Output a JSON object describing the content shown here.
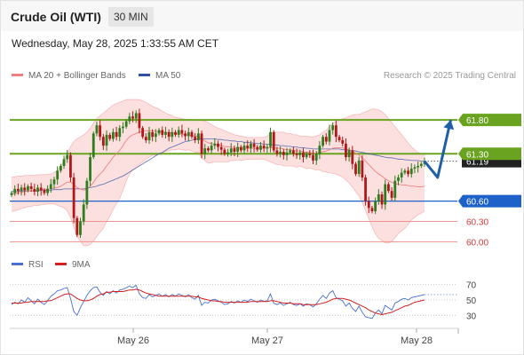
{
  "header": {
    "title": "Crude Oil (WTI)",
    "timeframe": "30 MIN",
    "datetime": "Wednesday, May 28, 2025 1:33:55 AM CET"
  },
  "legend": {
    "ma20": "MA 20 + Bollinger Bands",
    "ma50": "MA 50",
    "rsi": "RSI",
    "ma9": "9MA"
  },
  "credit": "Research © 2025 Trading Central",
  "colors": {
    "support_resistance": "#6aa31f",
    "pivot": "#1e62c9",
    "target": "#f09090",
    "ma20": "#f08080",
    "ma50": "#2f4fa0",
    "bands": "#fbd6d6",
    "candle_up": "#2e7d1f",
    "candle_down": "#b01818",
    "arrow": "#1f5fa8",
    "rsi_line": "#4a6fd0",
    "rsi_ma": "#d42020",
    "last_price_bg": "#222222"
  },
  "chart_data": [
    {
      "type": "candlestick",
      "ylim": [
        59.9,
        62.3
      ],
      "x_labels": [
        "May 26",
        "May 27",
        "May 28"
      ],
      "levels": [
        {
          "value": 61.8,
          "label": "61.80",
          "kind": "resistance"
        },
        {
          "value": 61.3,
          "label": "61.30",
          "kind": "resistance"
        },
        {
          "value": 60.6,
          "label": "60.60",
          "kind": "pivot"
        },
        {
          "value": 60.3,
          "label": "60.30",
          "kind": "target"
        },
        {
          "value": 60.0,
          "label": "60.00",
          "kind": "target"
        }
      ],
      "last_price": {
        "value": 61.19,
        "label": "61.19"
      },
      "closes": [
        60.72,
        60.78,
        60.75,
        60.8,
        60.76,
        60.82,
        60.78,
        60.74,
        60.8,
        60.76,
        60.72,
        60.78,
        60.85,
        60.92,
        61.05,
        61.12,
        61.22,
        61.28,
        60.95,
        60.35,
        60.1,
        60.3,
        60.55,
        60.9,
        61.25,
        61.6,
        61.72,
        61.55,
        61.42,
        61.58,
        61.52,
        61.62,
        61.55,
        61.68,
        61.7,
        61.78,
        61.85,
        61.82,
        61.9,
        61.68,
        61.55,
        61.5,
        61.62,
        61.55,
        61.6,
        61.65,
        61.58,
        61.62,
        61.55,
        61.62,
        61.58,
        61.65,
        61.6,
        61.56,
        61.62,
        61.55,
        61.5,
        61.6,
        61.3,
        61.38,
        61.35,
        61.42,
        61.45,
        61.4,
        61.36,
        61.3,
        61.32,
        61.38,
        61.33,
        61.4,
        61.35,
        61.42,
        61.38,
        61.45,
        61.4,
        61.36,
        61.42,
        61.38,
        61.4,
        61.62,
        61.35,
        61.3,
        61.33,
        61.28,
        61.32,
        61.35,
        61.3,
        61.28,
        61.32,
        61.25,
        61.3,
        61.28,
        61.2,
        61.3,
        61.42,
        61.55,
        61.48,
        61.65,
        61.72,
        61.55,
        61.5,
        61.45,
        61.25,
        61.35,
        61.15,
        61.0,
        61.2,
        60.95,
        60.6,
        60.5,
        60.45,
        60.6,
        60.7,
        60.55,
        60.85,
        60.75,
        60.65,
        60.9,
        60.95,
        61.02,
        61.05,
        61.0,
        61.08,
        61.1,
        61.12,
        61.15,
        61.19
      ],
      "ma20": [
        60.7,
        60.71,
        60.72,
        60.73,
        60.74,
        60.75,
        60.75,
        60.76,
        60.76,
        60.77,
        60.77,
        60.78,
        60.78,
        60.79,
        60.8,
        60.82,
        60.85,
        60.88,
        60.88,
        60.85,
        60.8,
        60.78,
        60.76,
        60.78,
        60.82,
        60.88,
        60.95,
        61.0,
        61.05,
        61.12,
        61.18,
        61.25,
        61.3,
        61.35,
        61.42,
        61.5,
        61.55,
        61.58,
        61.6,
        61.62,
        61.63,
        61.64,
        61.64,
        61.64,
        61.63,
        61.63,
        61.62,
        61.62,
        61.61,
        61.61,
        61.6,
        61.6,
        61.59,
        61.58,
        61.58,
        61.57,
        61.56,
        61.56,
        61.52,
        61.49,
        61.46,
        61.45,
        61.44,
        61.43,
        61.42,
        61.41,
        61.4,
        61.4,
        61.39,
        61.39,
        61.38,
        61.38,
        61.38,
        61.38,
        61.38,
        61.38,
        61.38,
        61.38,
        61.38,
        61.39,
        61.39,
        61.38,
        61.38,
        61.37,
        61.36,
        61.36,
        61.35,
        61.34,
        61.34,
        61.33,
        61.32,
        61.32,
        61.31,
        61.31,
        61.32,
        61.33,
        61.34,
        61.36,
        61.38,
        61.39,
        61.39,
        61.39,
        61.37,
        61.36,
        61.34,
        61.31,
        61.28,
        61.24,
        61.19,
        61.14,
        61.09,
        61.04,
        61.0,
        60.97,
        60.93,
        60.9,
        60.88,
        60.86,
        60.85,
        60.84,
        60.84,
        60.83,
        60.82,
        60.82,
        60.81,
        60.81,
        60.82
      ],
      "ma50": [
        60.74,
        60.74,
        60.74,
        60.75,
        60.75,
        60.75,
        60.75,
        60.75,
        60.75,
        60.76,
        60.76,
        60.76,
        60.76,
        60.77,
        60.77,
        60.77,
        60.78,
        60.78,
        60.78,
        60.78,
        60.78,
        60.78,
        60.78,
        60.79,
        60.8,
        60.81,
        60.82,
        60.84,
        60.85,
        60.87,
        60.89,
        60.91,
        60.93,
        60.95,
        60.97,
        61.0,
        61.03,
        61.06,
        61.09,
        61.12,
        61.15,
        61.18,
        61.21,
        61.24,
        61.27,
        61.3,
        61.32,
        61.35,
        61.38,
        61.4,
        61.42,
        61.44,
        61.46,
        61.48,
        61.49,
        61.5,
        61.51,
        61.52,
        61.52,
        61.52,
        61.52,
        61.52,
        61.52,
        61.51,
        61.51,
        61.5,
        61.5,
        61.49,
        61.49,
        61.48,
        61.48,
        61.47,
        61.47,
        61.46,
        61.46,
        61.45,
        61.45,
        61.44,
        61.44,
        61.44,
        61.43,
        61.43,
        61.42,
        61.42,
        61.41,
        61.41,
        61.4,
        61.4,
        61.39,
        61.39,
        61.38,
        61.38,
        61.37,
        61.37,
        61.37,
        61.37,
        61.37,
        61.37,
        61.37,
        61.37,
        61.37,
        61.36,
        61.36,
        61.35,
        61.35,
        61.34,
        61.33,
        61.32,
        61.31,
        61.3,
        61.29,
        61.28,
        61.27,
        61.26,
        61.25,
        61.24,
        61.24,
        61.23,
        61.22,
        61.22,
        61.21,
        61.21,
        61.2,
        61.2,
        61.2,
        61.19,
        61.19
      ],
      "bb_upper": [
        60.95,
        60.96,
        60.97,
        60.97,
        60.98,
        60.98,
        60.98,
        60.98,
        60.99,
        60.99,
        60.99,
        61.0,
        61.0,
        61.02,
        61.06,
        61.12,
        61.2,
        61.3,
        61.4,
        61.48,
        61.52,
        61.55,
        61.58,
        61.62,
        61.68,
        61.75,
        61.82,
        61.86,
        61.9,
        61.94,
        61.98,
        62.02,
        62.04,
        62.06,
        62.08,
        62.1,
        62.1,
        62.1,
        62.1,
        62.1,
        62.08,
        62.06,
        62.03,
        62.0,
        61.98,
        61.96,
        61.93,
        61.9,
        61.88,
        61.86,
        61.84,
        61.83,
        61.82,
        61.81,
        61.8,
        61.8,
        61.8,
        61.8,
        61.8,
        61.78,
        61.76,
        61.73,
        61.7,
        61.68,
        61.66,
        61.64,
        61.62,
        61.6,
        61.58,
        61.57,
        61.56,
        61.55,
        61.54,
        61.54,
        61.54,
        61.54,
        61.54,
        61.54,
        61.56,
        61.6,
        61.62,
        61.62,
        61.62,
        61.62,
        61.6,
        61.6,
        61.58,
        61.58,
        61.56,
        61.56,
        61.56,
        61.55,
        61.55,
        61.56,
        61.58,
        61.62,
        61.65,
        61.7,
        61.75,
        61.78,
        61.8,
        61.82,
        61.83,
        61.85,
        61.87,
        61.88,
        61.88,
        61.9,
        61.92,
        61.94,
        61.96,
        61.96,
        61.95,
        61.92,
        61.88,
        61.82,
        61.76,
        61.7,
        61.64,
        61.58,
        61.52,
        61.46,
        61.4,
        61.36,
        61.32,
        61.3,
        61.28
      ],
      "bb_lower": [
        60.45,
        60.46,
        60.47,
        60.49,
        60.5,
        60.52,
        60.52,
        60.54,
        60.53,
        60.55,
        60.55,
        60.56,
        60.56,
        60.56,
        60.54,
        60.52,
        60.5,
        60.46,
        60.36,
        60.22,
        60.08,
        60.01,
        59.94,
        59.94,
        59.96,
        60.01,
        60.08,
        60.14,
        60.2,
        60.3,
        60.38,
        60.48,
        60.56,
        60.64,
        60.76,
        60.9,
        61.0,
        61.06,
        61.1,
        61.14,
        61.18,
        61.22,
        61.25,
        61.28,
        61.28,
        61.3,
        61.31,
        61.34,
        61.34,
        61.36,
        61.36,
        61.37,
        61.36,
        61.35,
        61.36,
        61.34,
        61.32,
        61.32,
        61.24,
        61.2,
        61.16,
        61.17,
        61.18,
        61.18,
        61.18,
        61.18,
        61.18,
        61.2,
        61.2,
        61.21,
        61.2,
        61.21,
        61.22,
        61.22,
        61.22,
        61.22,
        61.22,
        61.22,
        61.2,
        61.18,
        61.16,
        61.14,
        61.14,
        61.12,
        61.12,
        61.12,
        61.12,
        61.1,
        61.12,
        61.1,
        61.08,
        61.09,
        61.07,
        61.06,
        61.06,
        61.04,
        61.03,
        61.02,
        61.01,
        61.0,
        60.98,
        60.96,
        60.91,
        60.87,
        60.81,
        60.74,
        60.68,
        60.58,
        60.46,
        60.34,
        60.22,
        60.12,
        60.05,
        60.02,
        59.98,
        59.98,
        60.0,
        60.06,
        60.12,
        60.16,
        60.2,
        60.26,
        60.32,
        60.36,
        60.4,
        60.42,
        60.46
      ],
      "projection": [
        {
          "step": 0,
          "value": 61.19
        },
        {
          "step": 4,
          "value": 60.95
        },
        {
          "step": 8,
          "value": 61.8
        }
      ]
    },
    {
      "type": "line",
      "name": "RSI",
      "ylim": [
        20,
        80
      ],
      "y_ticks": [
        70,
        50,
        30
      ],
      "rsi": [
        44,
        47,
        45,
        50,
        47,
        53,
        49,
        45,
        51,
        47,
        44,
        49,
        55,
        58,
        62,
        63,
        65,
        66,
        52,
        35,
        30,
        40,
        48,
        56,
        62,
        66,
        67,
        60,
        56,
        61,
        58,
        62,
        59,
        63,
        64,
        66,
        68,
        66,
        69,
        58,
        53,
        52,
        57,
        54,
        56,
        58,
        55,
        57,
        54,
        57,
        55,
        58,
        56,
        54,
        57,
        53,
        51,
        56,
        43,
        47,
        46,
        50,
        51,
        49,
        47,
        44,
        45,
        48,
        46,
        49,
        47,
        50,
        48,
        51,
        49,
        47,
        50,
        48,
        49,
        58,
        46,
        44,
        46,
        43,
        45,
        47,
        44,
        43,
        45,
        42,
        45,
        44,
        41,
        45,
        51,
        56,
        52,
        59,
        62,
        53,
        51,
        49,
        42,
        46,
        39,
        35,
        42,
        34,
        28,
        27,
        26,
        33,
        37,
        32,
        43,
        40,
        37,
        46,
        48,
        51,
        52,
        50,
        53,
        54,
        55,
        56,
        57
      ],
      "rsi_ma": [
        46,
        46,
        46,
        46,
        47,
        47,
        48,
        48,
        48,
        48,
        48,
        49,
        49,
        51,
        53,
        55,
        57,
        58,
        58,
        55,
        52,
        50,
        49,
        49,
        50,
        52,
        55,
        57,
        58,
        60,
        60,
        61,
        61,
        61,
        61,
        62,
        63,
        63,
        64,
        63,
        61,
        59,
        58,
        57,
        56,
        55,
        55,
        55,
        55,
        55,
        55,
        55,
        55,
        55,
        55,
        55,
        54,
        54,
        52,
        51,
        50,
        49,
        49,
        48,
        48,
        47,
        47,
        47,
        47,
        47,
        47,
        47,
        47,
        48,
        48,
        48,
        48,
        48,
        48,
        49,
        49,
        48,
        47,
        46,
        46,
        46,
        45,
        45,
        45,
        44,
        44,
        44,
        44,
        44,
        45,
        46,
        47,
        49,
        51,
        52,
        52,
        52,
        51,
        50,
        48,
        46,
        44,
        42,
        40,
        37,
        35,
        33,
        32,
        31,
        32,
        33,
        34,
        36,
        38,
        40,
        42,
        43,
        45,
        47,
        48,
        49,
        50
      ]
    }
  ]
}
